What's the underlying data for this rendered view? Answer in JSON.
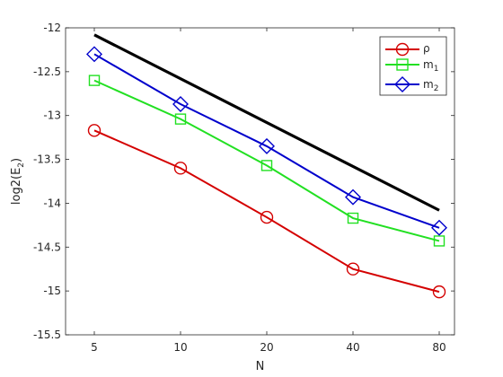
{
  "chart_data": {
    "type": "line",
    "title": "",
    "xlabel": "N",
    "ylabel_base": "log2(E",
    "ylabel_sub": "2",
    "ylabel_close": ")",
    "categories": [
      "5",
      "10",
      "20",
      "40",
      "80"
    ],
    "ylim": [
      -15.5,
      -12
    ],
    "yticks": [
      "-12",
      "-12.5",
      "-13",
      "-13.5",
      "-14",
      "-14.5",
      "-15",
      "-15.5"
    ],
    "grid": false,
    "legend_position": "top-right",
    "reference_line": {
      "color": "#000000",
      "values": [
        -12.08,
        null,
        null,
        null,
        -14.08
      ]
    },
    "series": [
      {
        "name": "ρ",
        "color": "#d40000",
        "marker": "circle",
        "values": [
          -13.17,
          -13.6,
          -14.16,
          -14.75,
          -15.01
        ]
      },
      {
        "name_base": "m",
        "name_sub": "1",
        "color": "#22e022",
        "marker": "square",
        "values": [
          -12.6,
          -13.04,
          -13.57,
          -14.17,
          -14.43
        ]
      },
      {
        "name_base": "m",
        "name_sub": "2",
        "color": "#0000cc",
        "marker": "diamond",
        "values": [
          -12.3,
          -12.87,
          -13.35,
          -13.93,
          -14.28
        ]
      }
    ]
  }
}
